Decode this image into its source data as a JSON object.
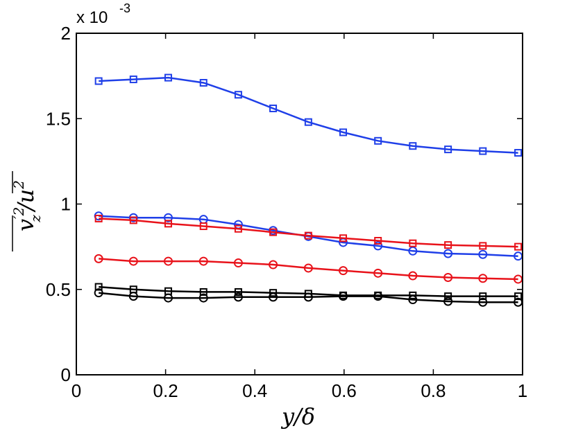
{
  "chart_data": {
    "type": "line",
    "title": "",
    "xlabel": "y/δ",
    "ylabel": "v'z² / ū²",
    "ylabel_parts": {
      "base_v": "v",
      "prime_two": "′2",
      "sub_z": "z",
      "slash": "/",
      "base_u": "u",
      "sup_two": "2"
    },
    "y_scale_label": "x 10",
    "y_scale_exponent": "-3",
    "xlim": [
      0,
      1
    ],
    "ylim": [
      0,
      2
    ],
    "xticks": [
      0,
      0.2,
      0.4,
      0.6,
      0.8,
      1
    ],
    "xtick_labels": [
      "0",
      "0.2",
      "0.4",
      "0.6",
      "0.8",
      "1"
    ],
    "yticks": [
      0,
      0.5,
      1,
      1.5,
      2
    ],
    "ytick_labels": [
      "0",
      "0.5",
      "1",
      "1.5",
      "2"
    ],
    "grid": false,
    "x": [
      0.05,
      0.128,
      0.206,
      0.285,
      0.363,
      0.441,
      0.52,
      0.598,
      0.676,
      0.754,
      0.833,
      0.911,
      0.99
    ],
    "series": [
      {
        "name": "blue-squares",
        "color": "#1f3fe8",
        "marker": "square",
        "values": [
          1.72,
          1.73,
          1.74,
          1.71,
          1.64,
          1.56,
          1.48,
          1.42,
          1.37,
          1.34,
          1.32,
          1.31,
          1.3
        ]
      },
      {
        "name": "blue-circles",
        "color": "#1f3fe8",
        "marker": "circle",
        "values": [
          0.93,
          0.92,
          0.92,
          0.91,
          0.88,
          0.845,
          0.81,
          0.775,
          0.755,
          0.725,
          0.71,
          0.705,
          0.695
        ]
      },
      {
        "name": "red-squares",
        "color": "#e8121a",
        "marker": "square",
        "values": [
          0.915,
          0.905,
          0.885,
          0.87,
          0.855,
          0.835,
          0.815,
          0.8,
          0.785,
          0.77,
          0.76,
          0.755,
          0.75
        ]
      },
      {
        "name": "red-circles",
        "color": "#e8121a",
        "marker": "circle",
        "values": [
          0.68,
          0.665,
          0.665,
          0.665,
          0.655,
          0.645,
          0.625,
          0.61,
          0.595,
          0.58,
          0.57,
          0.565,
          0.56
        ]
      },
      {
        "name": "black-squares",
        "color": "#000000",
        "marker": "square",
        "values": [
          0.515,
          0.5,
          0.49,
          0.485,
          0.485,
          0.48,
          0.475,
          0.465,
          0.465,
          0.465,
          0.46,
          0.46,
          0.46
        ]
      },
      {
        "name": "black-circles",
        "color": "#000000",
        "marker": "circle",
        "values": [
          0.48,
          0.46,
          0.45,
          0.45,
          0.455,
          0.455,
          0.455,
          0.46,
          0.46,
          0.44,
          0.43,
          0.425,
          0.425
        ]
      }
    ]
  }
}
